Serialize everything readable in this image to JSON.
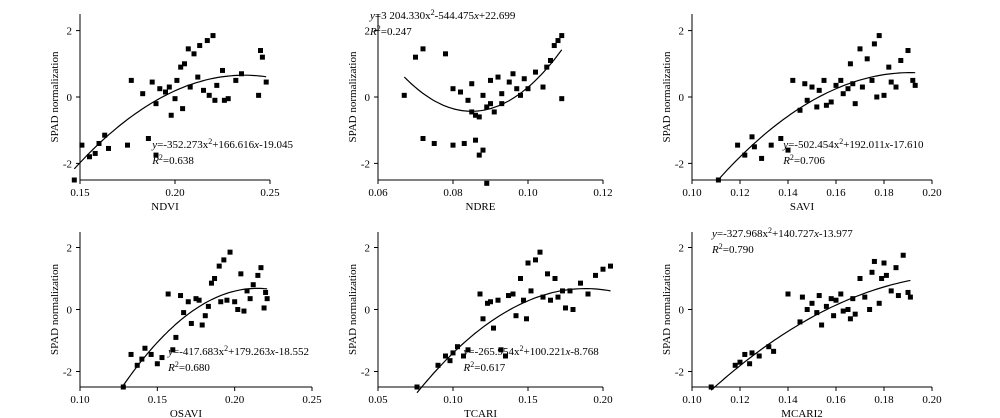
{
  "figure": {
    "ylabel_common": "SPAD normalization"
  },
  "chart_data": [
    {
      "id": "ndvi",
      "type": "scatter",
      "xlabel": "NDVI",
      "ylabel": "SPAD normalization",
      "xlim": [
        0.15,
        0.25
      ],
      "ylim": [
        -2.5,
        2.5
      ],
      "xticks": [
        0.15,
        0.2,
        0.25
      ],
      "xticklabels": [
        "0.15",
        "0.20",
        "0.25"
      ],
      "yticks": [
        -2,
        0,
        2
      ],
      "yticklabels": [
        "-2",
        "0",
        "2"
      ],
      "eq_y": "y",
      "eq_rest": "=-352.273x",
      "eq_tail": "+166.616",
      "eq_x": "x",
      "eq_end": "-19.045",
      "r2_label": "R",
      "r2_value": "=0.638",
      "fit": {
        "a": -352.273,
        "b": 166.616,
        "c": -19.045,
        "x_from": 0.147,
        "x_to": 0.248
      },
      "eq_pos": "bottom-right",
      "points": [
        [
          0.147,
          -2.5
        ],
        [
          0.151,
          -1.45
        ],
        [
          0.155,
          -1.8
        ],
        [
          0.158,
          -1.7
        ],
        [
          0.16,
          -1.4
        ],
        [
          0.163,
          -1.15
        ],
        [
          0.165,
          -1.55
        ],
        [
          0.175,
          -1.45
        ],
        [
          0.177,
          0.5
        ],
        [
          0.183,
          0.1
        ],
        [
          0.186,
          -1.25
        ],
        [
          0.188,
          0.45
        ],
        [
          0.19,
          -1.75
        ],
        [
          0.19,
          -0.2
        ],
        [
          0.192,
          0.25
        ],
        [
          0.195,
          0.15
        ],
        [
          0.197,
          0.3
        ],
        [
          0.198,
          -0.55
        ],
        [
          0.2,
          -0.05
        ],
        [
          0.201,
          0.5
        ],
        [
          0.203,
          0.9
        ],
        [
          0.204,
          -0.35
        ],
        [
          0.205,
          1.0
        ],
        [
          0.207,
          1.45
        ],
        [
          0.208,
          0.3
        ],
        [
          0.21,
          1.3
        ],
        [
          0.212,
          0.6
        ],
        [
          0.213,
          1.55
        ],
        [
          0.215,
          0.2
        ],
        [
          0.217,
          1.7
        ],
        [
          0.218,
          0.05
        ],
        [
          0.22,
          1.85
        ],
        [
          0.221,
          -0.1
        ],
        [
          0.222,
          0.35
        ],
        [
          0.225,
          0.8
        ],
        [
          0.226,
          -0.1
        ],
        [
          0.228,
          -0.05
        ],
        [
          0.232,
          0.5
        ],
        [
          0.235,
          0.7
        ],
        [
          0.244,
          0.05
        ],
        [
          0.245,
          1.4
        ],
        [
          0.246,
          1.2
        ],
        [
          0.248,
          0.45
        ]
      ]
    },
    {
      "id": "ndre",
      "type": "scatter",
      "xlabel": "NDRE",
      "ylabel": "SPAD normalization",
      "xlim": [
        0.06,
        0.12
      ],
      "ylim": [
        -2.5,
        2.5
      ],
      "xticks": [
        0.06,
        0.08,
        0.1,
        0.12
      ],
      "xticklabels": [
        "0.06",
        "0.08",
        "0.10",
        "0.12"
      ],
      "yticks": [
        -2,
        0,
        2
      ],
      "yticklabels": [
        "-2",
        "0",
        "2"
      ],
      "eq_y": "y",
      "eq_rest": "=3 204.330x",
      "eq_tail": "-544.475",
      "eq_x": "x",
      "eq_end": "+22.699",
      "r2_label": "R",
      "r2_value": "=0.247",
      "fit": {
        "a": 3204.33,
        "b": -544.475,
        "c": 22.699,
        "x_from": 0.067,
        "x_to": 0.109
      },
      "eq_pos": "top-left",
      "points": [
        [
          0.067,
          0.05
        ],
        [
          0.07,
          1.2
        ],
        [
          0.072,
          1.45
        ],
        [
          0.072,
          -1.25
        ],
        [
          0.075,
          -1.4
        ],
        [
          0.078,
          1.3
        ],
        [
          0.08,
          -1.45
        ],
        [
          0.08,
          0.25
        ],
        [
          0.082,
          0.15
        ],
        [
          0.083,
          -1.4
        ],
        [
          0.084,
          -0.1
        ],
        [
          0.085,
          0.4
        ],
        [
          0.085,
          -0.45
        ],
        [
          0.086,
          -1.3
        ],
        [
          0.086,
          -0.55
        ],
        [
          0.087,
          -0.6
        ],
        [
          0.087,
          -1.75
        ],
        [
          0.088,
          0.05
        ],
        [
          0.088,
          -1.6
        ],
        [
          0.089,
          -0.3
        ],
        [
          0.089,
          -2.6
        ],
        [
          0.09,
          0.5
        ],
        [
          0.09,
          -0.2
        ],
        [
          0.091,
          -0.45
        ],
        [
          0.092,
          0.6
        ],
        [
          0.093,
          0.1
        ],
        [
          0.093,
          -0.2
        ],
        [
          0.095,
          0.45
        ],
        [
          0.096,
          0.7
        ],
        [
          0.097,
          0.25
        ],
        [
          0.098,
          0.05
        ],
        [
          0.099,
          0.55
        ],
        [
          0.1,
          0.25
        ],
        [
          0.102,
          0.75
        ],
        [
          0.104,
          0.3
        ],
        [
          0.105,
          0.9
        ],
        [
          0.106,
          1.1
        ],
        [
          0.107,
          1.55
        ],
        [
          0.108,
          1.7
        ],
        [
          0.109,
          1.85
        ],
        [
          0.109,
          -0.05
        ]
      ]
    },
    {
      "id": "savi",
      "type": "scatter",
      "xlabel": "SAVI",
      "ylabel": "SPAD normalization",
      "xlim": [
        0.1,
        0.2
      ],
      "ylim": [
        -2.5,
        2.5
      ],
      "xticks": [
        0.1,
        0.12,
        0.14,
        0.16,
        0.18,
        0.2
      ],
      "xticklabels": [
        "0.10",
        "0.12",
        "0.14",
        "0.16",
        "0.18",
        "0.20"
      ],
      "yticks": [
        -2,
        0,
        2
      ],
      "yticklabels": [
        "-2",
        "0",
        "2"
      ],
      "eq_y": "y",
      "eq_rest": "=-502.454x",
      "eq_tail": "+192.011",
      "eq_x": "x",
      "eq_end": "-17.610",
      "r2_label": "R",
      "r2_value": "=0.706",
      "fit": {
        "a": -502.454,
        "b": 192.011,
        "c": -17.61,
        "x_from": 0.111,
        "x_to": 0.193
      },
      "eq_pos": "bottom-right",
      "points": [
        [
          0.111,
          -2.5
        ],
        [
          0.119,
          -1.45
        ],
        [
          0.122,
          -1.75
        ],
        [
          0.125,
          -1.2
        ],
        [
          0.126,
          -1.5
        ],
        [
          0.129,
          -1.85
        ],
        [
          0.133,
          -1.45
        ],
        [
          0.137,
          -1.25
        ],
        [
          0.14,
          -1.6
        ],
        [
          0.142,
          0.5
        ],
        [
          0.145,
          -0.4
        ],
        [
          0.147,
          0.4
        ],
        [
          0.148,
          -0.1
        ],
        [
          0.15,
          0.3
        ],
        [
          0.152,
          -0.3
        ],
        [
          0.153,
          0.2
        ],
        [
          0.155,
          0.5
        ],
        [
          0.156,
          -0.25
        ],
        [
          0.158,
          -0.15
        ],
        [
          0.16,
          0.35
        ],
        [
          0.162,
          0.5
        ],
        [
          0.163,
          0.1
        ],
        [
          0.165,
          0.25
        ],
        [
          0.166,
          1.0
        ],
        [
          0.167,
          0.4
        ],
        [
          0.168,
          -0.2
        ],
        [
          0.17,
          1.45
        ],
        [
          0.171,
          0.3
        ],
        [
          0.173,
          1.15
        ],
        [
          0.175,
          0.5
        ],
        [
          0.176,
          1.6
        ],
        [
          0.177,
          0.0
        ],
        [
          0.178,
          1.85
        ],
        [
          0.18,
          0.05
        ],
        [
          0.182,
          0.9
        ],
        [
          0.183,
          0.45
        ],
        [
          0.185,
          0.3
        ],
        [
          0.187,
          1.1
        ],
        [
          0.19,
          1.4
        ],
        [
          0.192,
          0.5
        ],
        [
          0.193,
          0.35
        ]
      ]
    },
    {
      "id": "osavi",
      "type": "scatter",
      "xlabel": "OSAVI",
      "ylabel": "SPAD normalization",
      "xlim": [
        0.1,
        0.25
      ],
      "ylim": [
        -2.5,
        2.5
      ],
      "xticks": [
        0.1,
        0.15,
        0.2,
        0.25
      ],
      "xticklabels": [
        "0.10",
        "0.15",
        "0.20",
        "0.25"
      ],
      "yticks": [
        -2,
        0,
        2
      ],
      "yticklabels": [
        "-2",
        "0",
        "2"
      ],
      "eq_y": "y",
      "eq_rest": "=-417.683x",
      "eq_tail": "+179.263",
      "eq_x": "x",
      "eq_end": "-18.552",
      "r2_label": "R",
      "r2_value": "=0.680",
      "fit": {
        "a": -417.683,
        "b": 179.263,
        "c": -18.552,
        "x_from": 0.128,
        "x_to": 0.221
      },
      "eq_pos": "bottom-right",
      "points": [
        [
          0.128,
          -2.5
        ],
        [
          0.133,
          -1.45
        ],
        [
          0.137,
          -1.8
        ],
        [
          0.14,
          -1.6
        ],
        [
          0.142,
          -1.25
        ],
        [
          0.146,
          -1.45
        ],
        [
          0.15,
          -1.75
        ],
        [
          0.153,
          -1.55
        ],
        [
          0.157,
          0.5
        ],
        [
          0.16,
          -1.3
        ],
        [
          0.162,
          -0.9
        ],
        [
          0.165,
          0.45
        ],
        [
          0.167,
          -0.1
        ],
        [
          0.17,
          0.25
        ],
        [
          0.172,
          -0.45
        ],
        [
          0.175,
          0.35
        ],
        [
          0.177,
          0.3
        ],
        [
          0.179,
          -0.5
        ],
        [
          0.181,
          -0.2
        ],
        [
          0.183,
          0.1
        ],
        [
          0.185,
          0.85
        ],
        [
          0.187,
          1.0
        ],
        [
          0.19,
          1.4
        ],
        [
          0.191,
          0.25
        ],
        [
          0.193,
          1.6
        ],
        [
          0.195,
          0.3
        ],
        [
          0.197,
          1.85
        ],
        [
          0.2,
          0.25
        ],
        [
          0.202,
          0.0
        ],
        [
          0.204,
          1.15
        ],
        [
          0.206,
          -0.05
        ],
        [
          0.208,
          0.6
        ],
        [
          0.21,
          0.35
        ],
        [
          0.212,
          0.8
        ],
        [
          0.215,
          1.1
        ],
        [
          0.217,
          1.35
        ],
        [
          0.219,
          0.05
        ],
        [
          0.22,
          0.55
        ],
        [
          0.221,
          0.35
        ]
      ]
    },
    {
      "id": "tcari",
      "type": "scatter",
      "xlabel": "TCARI",
      "ylabel": "SPAD normalization",
      "xlim": [
        0.05,
        0.2
      ],
      "ylim": [
        -2.5,
        2.5
      ],
      "xticks": [
        0.05,
        0.1,
        0.15,
        0.2
      ],
      "xticklabels": [
        "0.05",
        "0.10",
        "0.15",
        "0.20"
      ],
      "yticks": [
        -2,
        0,
        2
      ],
      "yticklabels": [
        "-2",
        "0",
        "2"
      ],
      "eq_y": "y",
      "eq_rest": "=-265.954x",
      "eq_tail": "+100.221",
      "eq_x": "x",
      "eq_end": "-8.768",
      "r2_label": "R",
      "r2_value": "=0.617",
      "fit": {
        "a": -265.954,
        "b": 100.221,
        "c": -8.768,
        "x_from": 0.076,
        "x_to": 0.205
      },
      "eq_pos": "bottom-right",
      "points": [
        [
          0.076,
          -2.5
        ],
        [
          0.09,
          -1.8
        ],
        [
          0.095,
          -1.5
        ],
        [
          0.098,
          -1.65
        ],
        [
          0.1,
          -1.4
        ],
        [
          0.103,
          -1.2
        ],
        [
          0.107,
          -1.5
        ],
        [
          0.11,
          -1.3
        ],
        [
          0.118,
          0.5
        ],
        [
          0.12,
          -0.3
        ],
        [
          0.123,
          0.2
        ],
        [
          0.125,
          0.25
        ],
        [
          0.127,
          -0.6
        ],
        [
          0.13,
          0.3
        ],
        [
          0.132,
          -1.3
        ],
        [
          0.135,
          -1.5
        ],
        [
          0.137,
          0.45
        ],
        [
          0.14,
          0.5
        ],
        [
          0.142,
          -0.2
        ],
        [
          0.145,
          1.0
        ],
        [
          0.147,
          0.3
        ],
        [
          0.149,
          -0.3
        ],
        [
          0.15,
          1.5
        ],
        [
          0.152,
          0.6
        ],
        [
          0.155,
          1.6
        ],
        [
          0.158,
          1.85
        ],
        [
          0.16,
          0.4
        ],
        [
          0.163,
          1.15
        ],
        [
          0.165,
          0.3
        ],
        [
          0.168,
          1.0
        ],
        [
          0.17,
          0.4
        ],
        [
          0.173,
          0.6
        ],
        [
          0.175,
          0.05
        ],
        [
          0.178,
          0.6
        ],
        [
          0.18,
          0.0
        ],
        [
          0.185,
          0.85
        ],
        [
          0.19,
          0.5
        ],
        [
          0.195,
          1.1
        ],
        [
          0.2,
          1.3
        ],
        [
          0.205,
          1.4
        ]
      ]
    },
    {
      "id": "mcari2",
      "type": "scatter",
      "xlabel": "MCARI2",
      "ylabel": "SPAD normalization",
      "xlim": [
        0.1,
        0.2
      ],
      "ylim": [
        -2.5,
        2.5
      ],
      "xticks": [
        0.1,
        0.12,
        0.14,
        0.16,
        0.18,
        0.2
      ],
      "xticklabels": [
        "0.10",
        "0.12",
        "0.14",
        "0.16",
        "0.18",
        "0.20"
      ],
      "yticks": [
        -2,
        0,
        2
      ],
      "yticklabels": [
        "-2",
        "0",
        "2"
      ],
      "eq_y": "y",
      "eq_rest": "=-327.968x",
      "eq_tail": "+140.727",
      "eq_x": "x",
      "eq_end": "-13.977",
      "r2_label": "R",
      "r2_value": "=0.790",
      "fit": {
        "a": -327.968,
        "b": 140.727,
        "c": -13.977,
        "x_from": 0.108,
        "x_to": 0.191
      },
      "eq_pos": "top-left",
      "points": [
        [
          0.108,
          -2.5
        ],
        [
          0.118,
          -1.8
        ],
        [
          0.12,
          -1.7
        ],
        [
          0.122,
          -1.45
        ],
        [
          0.124,
          -1.75
        ],
        [
          0.125,
          -1.4
        ],
        [
          0.128,
          -1.5
        ],
        [
          0.132,
          -1.2
        ],
        [
          0.134,
          -1.35
        ],
        [
          0.14,
          0.5
        ],
        [
          0.145,
          -0.4
        ],
        [
          0.146,
          0.4
        ],
        [
          0.148,
          0.0
        ],
        [
          0.15,
          0.2
        ],
        [
          0.152,
          -0.1
        ],
        [
          0.153,
          0.45
        ],
        [
          0.154,
          -0.5
        ],
        [
          0.156,
          0.1
        ],
        [
          0.158,
          0.35
        ],
        [
          0.159,
          -0.2
        ],
        [
          0.16,
          0.3
        ],
        [
          0.162,
          0.5
        ],
        [
          0.163,
          -0.05
        ],
        [
          0.165,
          0.0
        ],
        [
          0.166,
          -0.3
        ],
        [
          0.167,
          0.35
        ],
        [
          0.168,
          -0.15
        ],
        [
          0.17,
          1.0
        ],
        [
          0.172,
          0.4
        ],
        [
          0.174,
          0.0
        ],
        [
          0.175,
          1.2
        ],
        [
          0.176,
          1.55
        ],
        [
          0.178,
          0.2
        ],
        [
          0.179,
          1.0
        ],
        [
          0.18,
          1.5
        ],
        [
          0.181,
          1.1
        ],
        [
          0.183,
          0.6
        ],
        [
          0.185,
          1.35
        ],
        [
          0.186,
          0.45
        ],
        [
          0.188,
          1.75
        ],
        [
          0.19,
          0.55
        ],
        [
          0.191,
          0.4
        ]
      ]
    }
  ]
}
